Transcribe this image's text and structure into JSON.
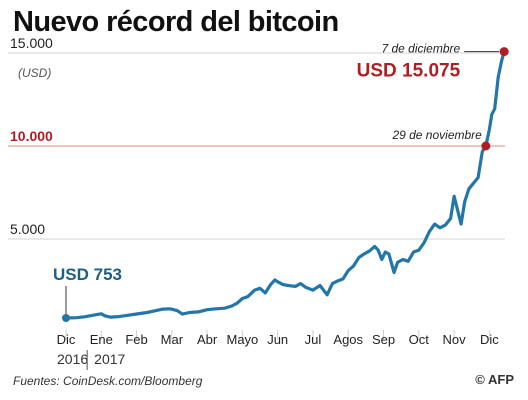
{
  "title": "Nuevo récord del bitcoin",
  "source": "Fuentes: CoinDesk.com/Bloomberg",
  "credit": "© AFP",
  "colors": {
    "line": "#2277a8",
    "highlight": "#b01e24",
    "start_label": "#1f5f83",
    "ref_line": "#d98888",
    "grid": "#d3d3d3"
  },
  "chart_data": {
    "type": "line",
    "title": "Nuevo récord del bitcoin",
    "ylabel": "(USD)",
    "ylim": [
      0,
      15000
    ],
    "yticks": [
      {
        "value": 15000,
        "label": "15.000",
        "highlight": false
      },
      {
        "value": 10000,
        "label": "10.000",
        "highlight": true
      },
      {
        "value": 5000,
        "label": "5.000",
        "highlight": false
      }
    ],
    "xlim": [
      0,
      12.5
    ],
    "months": [
      "Dic",
      "Ene",
      "Feb",
      "Mar",
      "Abr",
      "Mayo",
      "Jun",
      "Jul",
      "Agos",
      "Sep",
      "Oct",
      "Nov",
      "Dic"
    ],
    "years": [
      "2016",
      "2017"
    ],
    "grid": true,
    "series": [
      {
        "values": [
          [
            0,
            753
          ],
          [
            0.3,
            770
          ],
          [
            0.55,
            820
          ],
          [
            0.85,
            930
          ],
          [
            1.0,
            980
          ],
          [
            1.1,
            870
          ],
          [
            1.25,
            800
          ],
          [
            1.5,
            830
          ],
          [
            1.75,
            900
          ],
          [
            2.0,
            970
          ],
          [
            2.3,
            1050
          ],
          [
            2.55,
            1150
          ],
          [
            2.75,
            1230
          ],
          [
            2.95,
            1250
          ],
          [
            3.15,
            1150
          ],
          [
            3.3,
            960
          ],
          [
            3.5,
            1050
          ],
          [
            3.75,
            1080
          ],
          [
            4.0,
            1200
          ],
          [
            4.25,
            1250
          ],
          [
            4.5,
            1280
          ],
          [
            4.7,
            1400
          ],
          [
            4.85,
            1550
          ],
          [
            5.0,
            1800
          ],
          [
            5.15,
            1900
          ],
          [
            5.35,
            2250
          ],
          [
            5.5,
            2350
          ],
          [
            5.65,
            2100
          ],
          [
            5.8,
            2550
          ],
          [
            5.92,
            2800
          ],
          [
            6.0,
            2700
          ],
          [
            6.15,
            2550
          ],
          [
            6.3,
            2500
          ],
          [
            6.5,
            2450
          ],
          [
            6.65,
            2600
          ],
          [
            6.8,
            2400
          ],
          [
            7.0,
            2250
          ],
          [
            7.2,
            2500
          ],
          [
            7.4,
            2000
          ],
          [
            7.55,
            2600
          ],
          [
            7.7,
            2750
          ],
          [
            7.85,
            2850
          ],
          [
            8.0,
            3300
          ],
          [
            8.15,
            3550
          ],
          [
            8.3,
            4000
          ],
          [
            8.45,
            4200
          ],
          [
            8.6,
            4350
          ],
          [
            8.75,
            4600
          ],
          [
            8.85,
            4400
          ],
          [
            8.95,
            3900
          ],
          [
            9.05,
            4300
          ],
          [
            9.15,
            4200
          ],
          [
            9.3,
            3200
          ],
          [
            9.4,
            3750
          ],
          [
            9.55,
            3900
          ],
          [
            9.7,
            3800
          ],
          [
            9.85,
            4300
          ],
          [
            10.0,
            4400
          ],
          [
            10.15,
            4800
          ],
          [
            10.3,
            5400
          ],
          [
            10.45,
            5800
          ],
          [
            10.6,
            5600
          ],
          [
            10.75,
            5750
          ],
          [
            10.9,
            6100
          ],
          [
            11.0,
            7300
          ],
          [
            11.12,
            6400
          ],
          [
            11.2,
            5800
          ],
          [
            11.3,
            7000
          ],
          [
            11.42,
            7700
          ],
          [
            11.55,
            8000
          ],
          [
            11.68,
            8300
          ],
          [
            11.8,
            9700
          ],
          [
            11.9,
            10000
          ],
          [
            12.0,
            10900
          ],
          [
            12.07,
            11700
          ],
          [
            12.15,
            12000
          ],
          [
            12.25,
            13700
          ],
          [
            12.35,
            14600
          ],
          [
            12.42,
            15075
          ]
        ]
      }
    ],
    "annotations": [
      {
        "x": 0,
        "y": 753,
        "label": "USD 753"
      },
      {
        "x": 11.9,
        "y": 10000,
        "label": "29 de noviembre"
      },
      {
        "x": 12.42,
        "y": 15075,
        "label": "7 de diciembre",
        "value_label": "USD 15.075"
      }
    ]
  }
}
